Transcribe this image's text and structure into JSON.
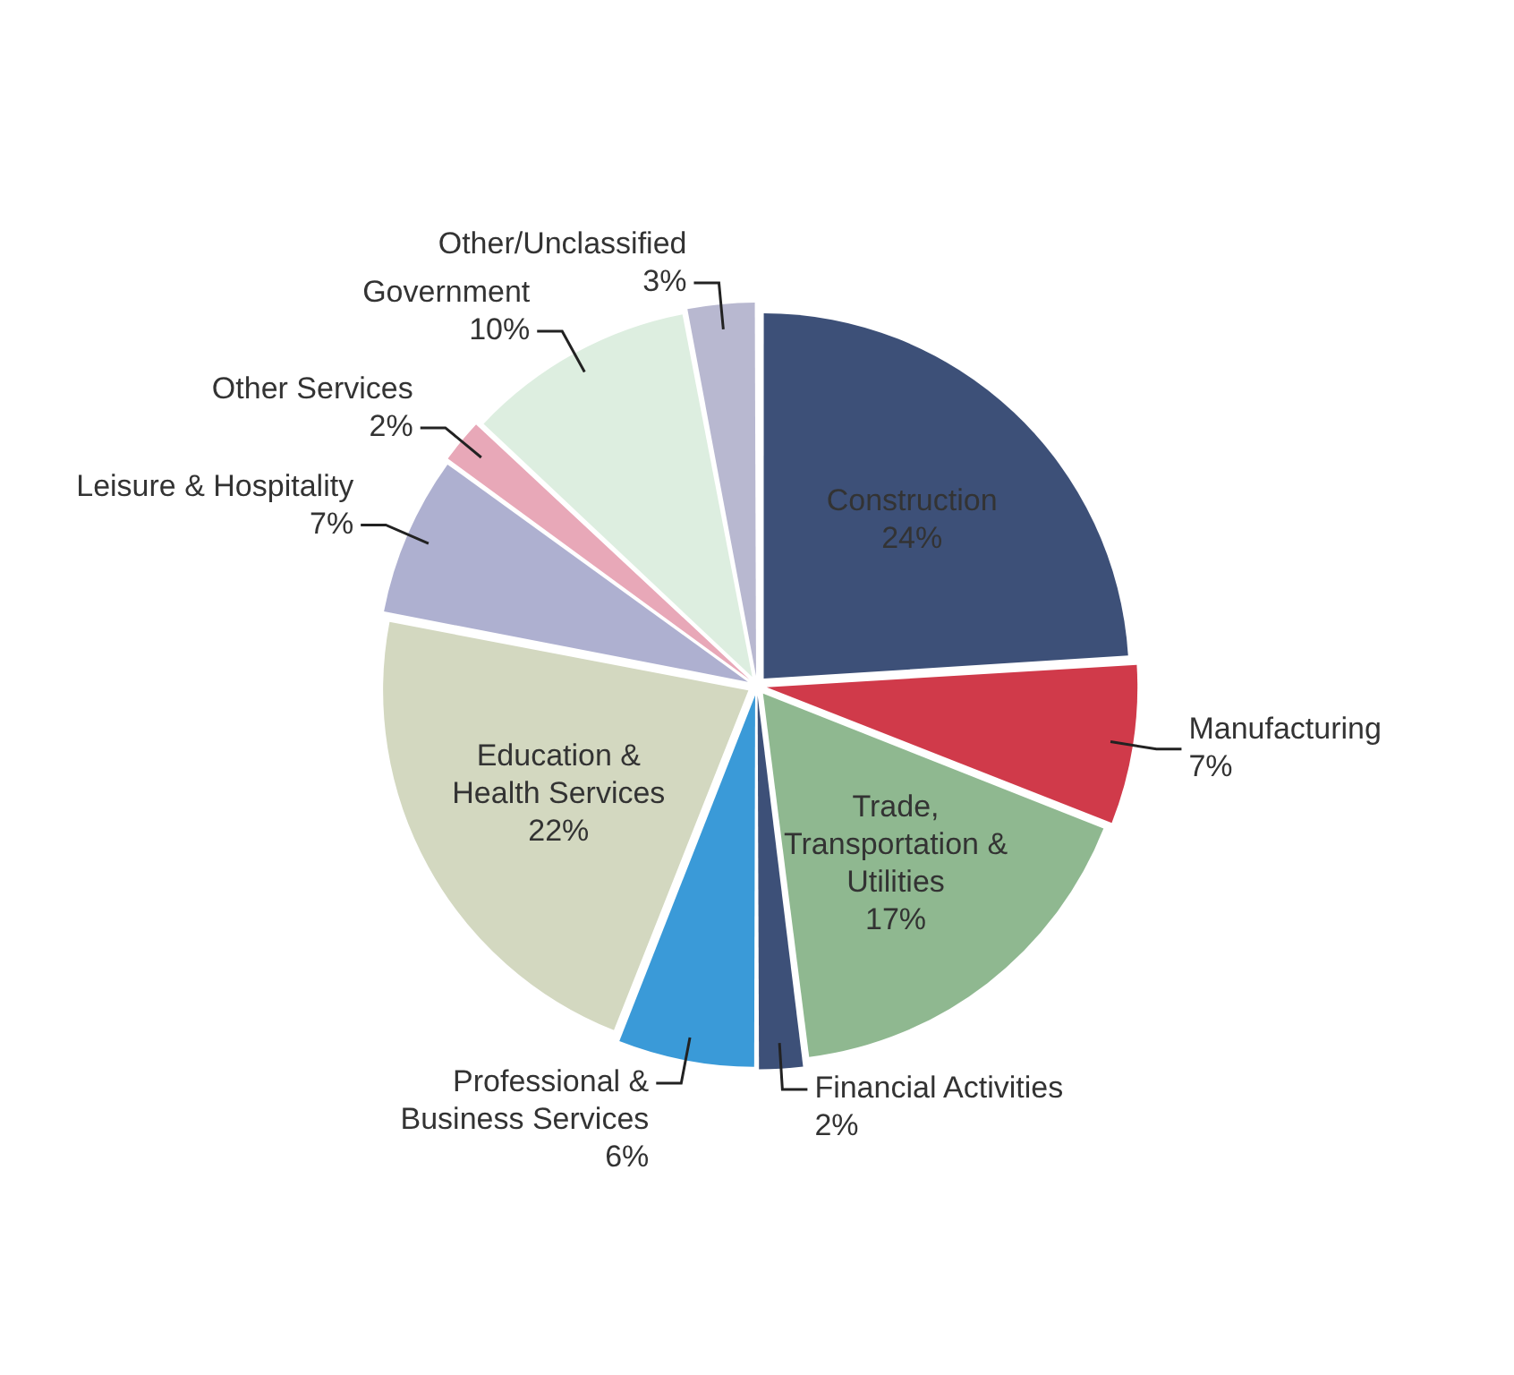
{
  "chart_data": {
    "type": "pie",
    "categories": [
      "Construction",
      "Manufacturing",
      "Trade, Transportation & Utilities",
      "Financial Activities",
      "Professional & Business Services",
      "Education & Health Services",
      "Leisure & Hospitality",
      "Other Services",
      "Government",
      "Other/Unclassified"
    ],
    "values": [
      24,
      7,
      17,
      2,
      6,
      22,
      7,
      2,
      10,
      3
    ],
    "value_labels": [
      "24%",
      "7%",
      "17%",
      "2%",
      "6%",
      "22%",
      "7%",
      "2%",
      "10%",
      "3%"
    ],
    "colors": [
      "#3d5078",
      "#d03a4a",
      "#8fb890",
      "#3d5078",
      "#3a9ad8",
      "#d3d8c0",
      "#aeb0d0",
      "#e8a8b8",
      "#ddeee0",
      "#b8b8d0"
    ],
    "legend": false
  }
}
